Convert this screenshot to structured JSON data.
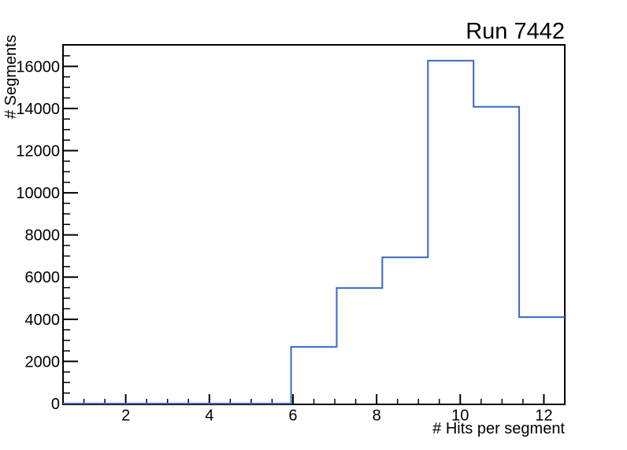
{
  "chart_data": {
    "type": "histogram-step",
    "title": "Run 7442",
    "xlabel": "# Hits per segment",
    "ylabel": "# Segments",
    "xlim": [
      0.5,
      12.5
    ],
    "ylim": [
      0,
      17020
    ],
    "bin_edges": [
      0.5,
      1.5909,
      2.6818,
      3.7727,
      4.8636,
      5.9545,
      7.0455,
      8.1364,
      9.2273,
      10.3182,
      11.4091,
      12.5
    ],
    "counts": [
      0,
      0,
      0,
      0,
      0,
      2690,
      5480,
      6940,
      16270,
      14080,
      4100
    ],
    "x_major_ticks": [
      2,
      4,
      6,
      8,
      10,
      12
    ],
    "x_tick_labels": [
      "2",
      "4",
      "6",
      "8",
      "10",
      "12"
    ],
    "x_minor_step": 0.5,
    "y_major_ticks": [
      0,
      2000,
      4000,
      6000,
      8000,
      10000,
      12000,
      14000,
      16000
    ],
    "y_tick_labels": [
      "0",
      "2000",
      "4000",
      "6000",
      "8000",
      "10000",
      "12000",
      "14000",
      "16000"
    ],
    "y_minor_step": 500,
    "grid": false,
    "legend": null,
    "line_color": "#3a68c2",
    "frame_color": "#000000",
    "text_color": "#000000",
    "background_color": "#ffffff"
  }
}
